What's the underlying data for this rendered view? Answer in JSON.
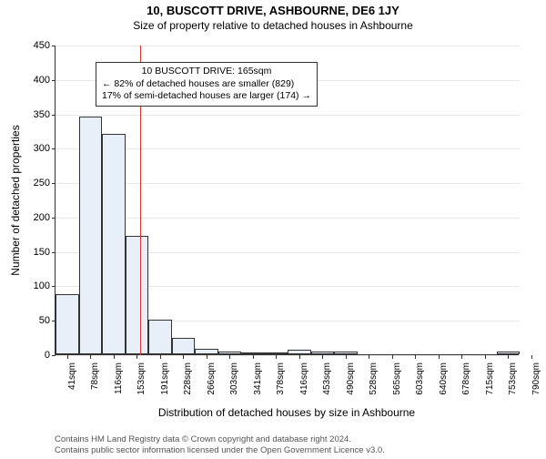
{
  "title": "10, BUSCOTT DRIVE, ASHBOURNE, DE6 1JY",
  "subtitle": "Size of property relative to detached houses in Ashbourne",
  "chart": {
    "type": "histogram",
    "ylabel": "Number of detached properties",
    "xlabel": "Distribution of detached houses by size in Ashbourne",
    "ylim": [
      0,
      450
    ],
    "ytick_step": 50,
    "yticks": [
      0,
      50,
      100,
      150,
      200,
      250,
      300,
      350,
      400,
      450
    ],
    "xticks": [
      "41sqm",
      "78sqm",
      "116sqm",
      "153sqm",
      "191sqm",
      "228sqm",
      "266sqm",
      "303sqm",
      "341sqm",
      "378sqm",
      "416sqm",
      "453sqm",
      "490sqm",
      "528sqm",
      "565sqm",
      "603sqm",
      "640sqm",
      "678sqm",
      "715sqm",
      "753sqm",
      "790sqm"
    ],
    "bar_values": [
      88,
      345,
      320,
      172,
      50,
      24,
      8,
      4,
      2,
      2,
      6,
      4,
      4,
      0,
      0,
      0,
      0,
      0,
      0,
      4
    ],
    "bar_color": "#e8eff8",
    "bar_border": "#333333",
    "background_color": "#ffffff",
    "grid_color": "#e8e8e8",
    "title_fontsize": 13,
    "subtitle_fontsize": 12,
    "label_fontsize": 12,
    "tick_fontsize": 11,
    "marker": {
      "value_sqm": 165,
      "color": "#dd3333"
    },
    "annotation": {
      "line1": "10 BUSCOTT DRIVE: 165sqm",
      "line2": "← 82% of detached houses are smaller (829)",
      "line3": "17% of semi-detached houses are larger (174) →"
    }
  },
  "footer": {
    "line1": "Contains HM Land Registry data © Crown copyright and database right 2024.",
    "line2": "Contains public sector information licensed under the Open Government Licence v3.0."
  }
}
